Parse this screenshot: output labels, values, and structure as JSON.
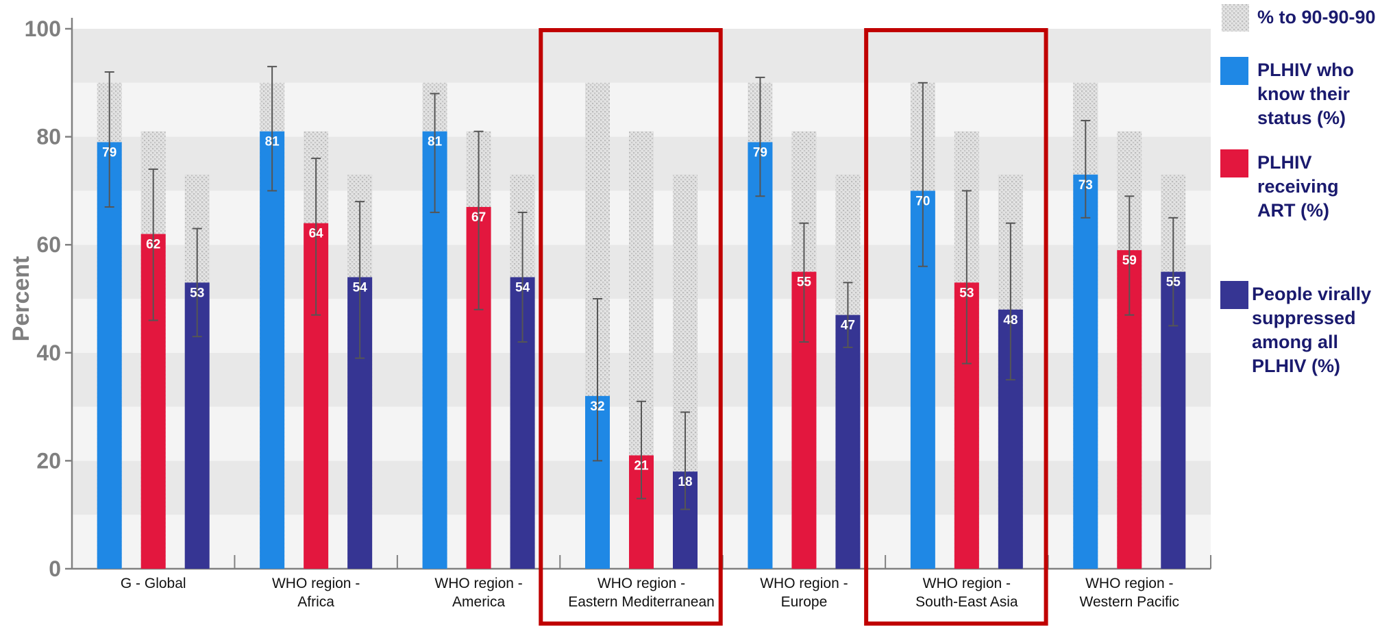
{
  "chart_data": {
    "type": "bar",
    "ylabel": "Percent",
    "ylim": [
      0,
      100
    ],
    "yticks": [
      0,
      20,
      40,
      60,
      80,
      100
    ],
    "grid": "alternating horizontal bands",
    "legend_position": "right",
    "categories": [
      [
        "G - Global"
      ],
      [
        "WHO region -",
        "Africa"
      ],
      [
        "WHO region -",
        "America"
      ],
      [
        "WHO region -",
        "Eastern Mediterranean"
      ],
      [
        "WHO region -",
        "Europe"
      ],
      [
        "WHO region -",
        "South-East Asia"
      ],
      [
        "WHO region -",
        "Western Pacific"
      ]
    ],
    "target": {
      "name": "% to 90-90-90",
      "values": [
        90,
        81,
        73
      ],
      "color": "#d0d0d0"
    },
    "series": [
      {
        "name": "PLHIV who know their status (%)",
        "legend_lines": [
          "PLHIV who",
          "know their",
          "status (%)"
        ],
        "color": "#1f88e5",
        "values": [
          79,
          81,
          81,
          32,
          79,
          70,
          73
        ],
        "error": [
          [
            67,
            92
          ],
          [
            70,
            93
          ],
          [
            66,
            88
          ],
          [
            20,
            50
          ],
          [
            69,
            91
          ],
          [
            56,
            90
          ],
          [
            65,
            83
          ]
        ]
      },
      {
        "name": "PLHIV receiving ART (%)",
        "legend_lines": [
          "PLHIV",
          "receiving",
          "ART (%)"
        ],
        "color": "#e3173e",
        "values": [
          62,
          64,
          67,
          21,
          55,
          53,
          59
        ],
        "error": [
          [
            46,
            74
          ],
          [
            47,
            76
          ],
          [
            48,
            81
          ],
          [
            13,
            31
          ],
          [
            42,
            64
          ],
          [
            38,
            70
          ],
          [
            47,
            69
          ]
        ]
      },
      {
        "name": "People virally suppressed among all PLHIV (%)",
        "legend_lines": [
          "People virally",
          "suppressed",
          "among all",
          "PLHIV (%)"
        ],
        "color": "#363593",
        "values": [
          53,
          54,
          54,
          18,
          47,
          48,
          55
        ],
        "error": [
          [
            43,
            63
          ],
          [
            39,
            68
          ],
          [
            42,
            66
          ],
          [
            11,
            29
          ],
          [
            41,
            53
          ],
          [
            35,
            64
          ],
          [
            45,
            65
          ]
        ]
      }
    ],
    "highlighted_categories": [
      3,
      5
    ],
    "highlight_color": "#c00000"
  }
}
